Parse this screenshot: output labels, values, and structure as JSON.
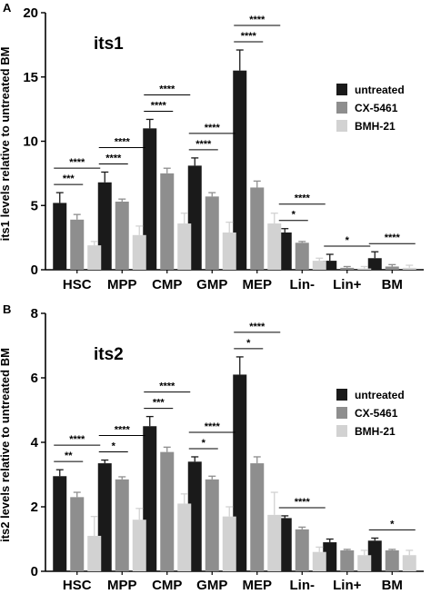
{
  "chart_data": [
    {
      "type": "bar",
      "panel_label": "A",
      "title": "its1",
      "ylabel": "its1 levels relative to untreated BM",
      "ylim": [
        0,
        20
      ],
      "yticks": [
        0,
        5,
        10,
        15,
        20
      ],
      "categories": [
        "HSC",
        "MPP",
        "CMP",
        "GMP",
        "MEP",
        "Lin-",
        "Lin+",
        "BM"
      ],
      "series": [
        {
          "name": "untreated",
          "color": "#1a1a1a",
          "values": [
            5.2,
            6.8,
            11.0,
            8.1,
            15.5,
            2.9,
            0.7,
            0.9
          ],
          "errors": [
            0.8,
            0.8,
            0.7,
            0.6,
            1.6,
            0.3,
            0.5,
            0.5
          ]
        },
        {
          "name": "CX-5461",
          "color": "#8e8e8e",
          "values": [
            3.9,
            5.3,
            7.5,
            5.7,
            6.4,
            2.1,
            0.15,
            0.25
          ],
          "errors": [
            0.4,
            0.2,
            0.4,
            0.3,
            0.5,
            0.1,
            0.1,
            0.15
          ]
        },
        {
          "name": "BMH-21",
          "color": "#d2d2d2",
          "values": [
            1.9,
            2.7,
            3.6,
            2.9,
            3.6,
            0.7,
            0.1,
            0.15
          ],
          "errors": [
            0.3,
            0.7,
            0.8,
            0.8,
            0.8,
            0.2,
            0.15,
            0.2
          ]
        }
      ],
      "significance": [
        {
          "category": "HSC",
          "pairs": [
            {
              "from": 0,
              "to": 1,
              "label": "***"
            },
            {
              "from": 0,
              "to": 2,
              "label": "****"
            }
          ]
        },
        {
          "category": "MPP",
          "pairs": [
            {
              "from": 0,
              "to": 1,
              "label": "****"
            },
            {
              "from": 0,
              "to": 2,
              "label": "****"
            }
          ]
        },
        {
          "category": "CMP",
          "pairs": [
            {
              "from": 0,
              "to": 1,
              "label": "****"
            },
            {
              "from": 0,
              "to": 2,
              "label": "****"
            }
          ]
        },
        {
          "category": "GMP",
          "pairs": [
            {
              "from": 0,
              "to": 1,
              "label": "****"
            },
            {
              "from": 0,
              "to": 2,
              "label": "****"
            }
          ]
        },
        {
          "category": "MEP",
          "pairs": [
            {
              "from": 0,
              "to": 1,
              "label": "****"
            },
            {
              "from": 0,
              "to": 2,
              "label": "****"
            }
          ]
        },
        {
          "category": "Lin-",
          "pairs": [
            {
              "from": 0,
              "to": 1,
              "label": "*"
            },
            {
              "from": 0,
              "to": 2,
              "label": "****"
            }
          ]
        },
        {
          "category": "Lin+",
          "pairs": [
            {
              "from": 0,
              "to": 2,
              "label": "*"
            }
          ]
        },
        {
          "category": "BM",
          "pairs": [
            {
              "from": 0,
              "to": 2,
              "label": "****"
            }
          ]
        }
      ],
      "legend": [
        "untreated",
        "CX-5461",
        "BMH-21"
      ],
      "legend_position": "right"
    },
    {
      "type": "bar",
      "panel_label": "B",
      "title": "its2",
      "ylabel": "its2 levels relative to untreated BM",
      "ylim": [
        0,
        8
      ],
      "yticks": [
        0,
        2,
        4,
        6,
        8
      ],
      "categories": [
        "HSC",
        "MPP",
        "CMP",
        "GMP",
        "MEP",
        "Lin-",
        "Lin+",
        "BM"
      ],
      "series": [
        {
          "name": "untreated",
          "color": "#1a1a1a",
          "values": [
            2.95,
            3.35,
            4.5,
            3.4,
            6.1,
            1.65,
            0.9,
            0.95
          ],
          "errors": [
            0.2,
            0.1,
            0.3,
            0.15,
            0.55,
            0.07,
            0.1,
            0.08
          ]
        },
        {
          "name": "CX-5461",
          "color": "#8e8e8e",
          "values": [
            2.3,
            2.85,
            3.7,
            2.85,
            3.35,
            1.3,
            0.65,
            0.65
          ],
          "errors": [
            0.15,
            0.08,
            0.15,
            0.1,
            0.2,
            0.07,
            0.03,
            0.03
          ]
        },
        {
          "name": "BMH-21",
          "color": "#d2d2d2",
          "values": [
            1.1,
            1.6,
            2.1,
            1.7,
            1.75,
            0.6,
            0.5,
            0.5
          ],
          "errors": [
            0.6,
            0.35,
            0.3,
            0.3,
            0.7,
            0.15,
            0.15,
            0.15
          ]
        }
      ],
      "significance": [
        {
          "category": "HSC",
          "pairs": [
            {
              "from": 0,
              "to": 1,
              "label": "**"
            },
            {
              "from": 0,
              "to": 2,
              "label": "****"
            }
          ]
        },
        {
          "category": "MPP",
          "pairs": [
            {
              "from": 0,
              "to": 1,
              "label": "*"
            },
            {
              "from": 0,
              "to": 2,
              "label": "****"
            }
          ]
        },
        {
          "category": "CMP",
          "pairs": [
            {
              "from": 0,
              "to": 1,
              "label": "***"
            },
            {
              "from": 0,
              "to": 2,
              "label": "****"
            }
          ]
        },
        {
          "category": "GMP",
          "pairs": [
            {
              "from": 0,
              "to": 1,
              "label": "*"
            },
            {
              "from": 0,
              "to": 2,
              "label": "****"
            }
          ]
        },
        {
          "category": "MEP",
          "pairs": [
            {
              "from": 0,
              "to": 1,
              "label": "*"
            },
            {
              "from": 0,
              "to": 2,
              "label": "****"
            }
          ]
        },
        {
          "category": "Lin-",
          "pairs": [
            {
              "from": 0,
              "to": 2,
              "label": "****"
            }
          ]
        },
        {
          "category": "BM",
          "pairs": [
            {
              "from": 0,
              "to": 2,
              "label": "*"
            }
          ]
        }
      ],
      "legend": [
        "untreated",
        "CX-5461",
        "BMH-21"
      ],
      "legend_position": "right"
    }
  ]
}
